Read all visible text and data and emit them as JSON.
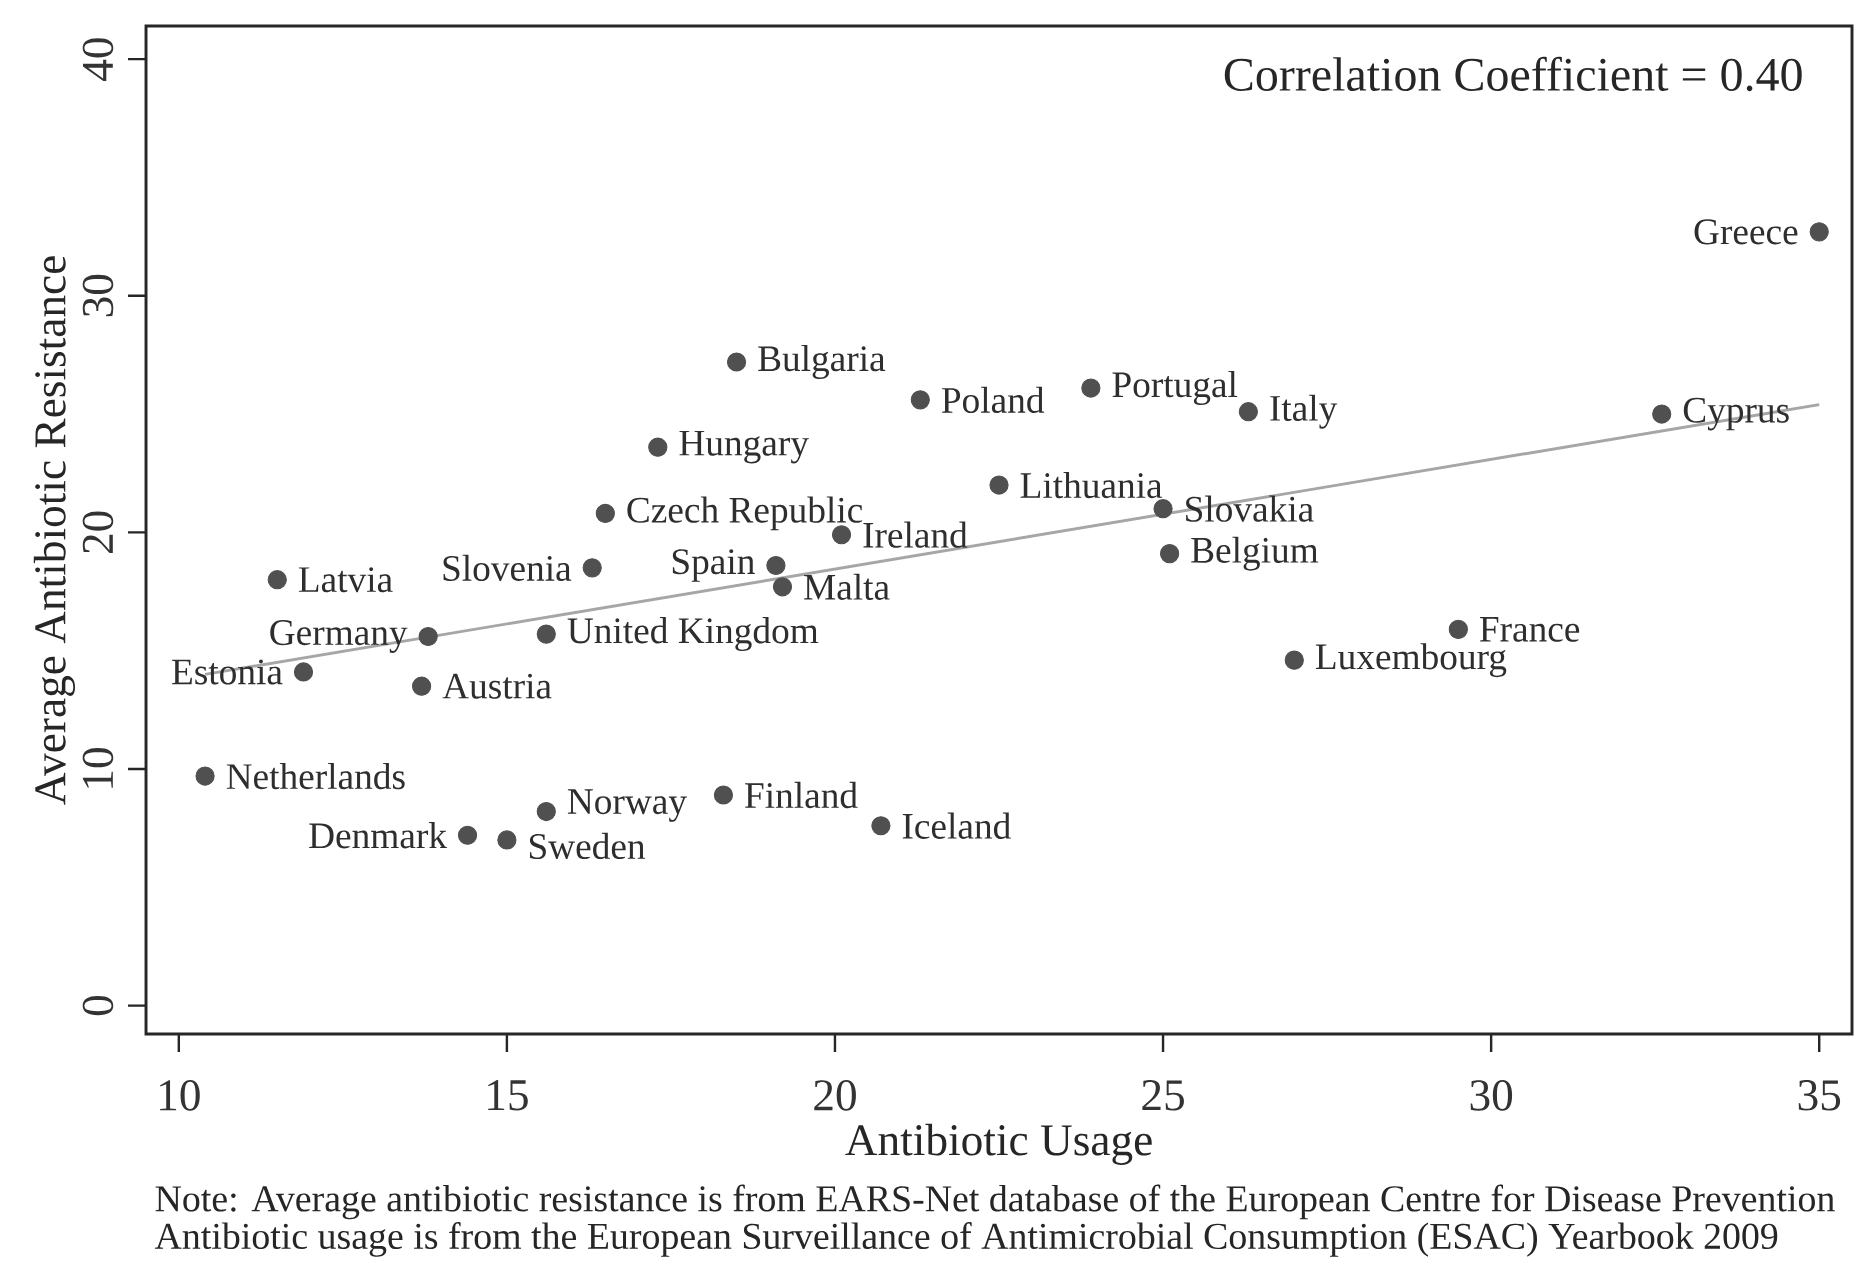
{
  "chart_data": {
    "type": "scatter",
    "xlabel": "Antibiotic Usage",
    "ylabel": "Average Antibiotic Resistance",
    "xlim": [
      9.5,
      35.5
    ],
    "ylim": [
      -1.2,
      41.4
    ],
    "xticks": [
      10,
      15,
      20,
      25,
      30,
      35
    ],
    "yticks": [
      0,
      10,
      20,
      30,
      40
    ],
    "marker": "circle",
    "series": [
      {
        "type": "line",
        "color": "#a6a6a6",
        "marker": "none",
        "x": [
          10.4,
          35.0
        ],
        "values": [
          14.0,
          25.4
        ]
      },
      {
        "type": "scatter",
        "color": "#505050",
        "x": [
          35.0,
          32.6,
          26.3,
          23.9,
          21.3,
          18.5,
          17.3,
          22.5,
          25.0,
          16.5,
          20.1,
          25.1,
          16.3,
          19.1,
          19.2,
          11.5,
          13.8,
          15.6,
          29.5,
          27.0,
          11.9,
          13.7,
          10.4,
          18.3,
          15.6,
          20.7,
          14.4,
          15.0
        ],
        "values": [
          32.7,
          25.0,
          25.1,
          26.1,
          25.6,
          27.2,
          23.6,
          22.0,
          21.0,
          20.8,
          19.9,
          19.1,
          18.5,
          18.6,
          17.7,
          18.0,
          15.6,
          15.7,
          15.9,
          14.6,
          14.1,
          13.5,
          9.7,
          8.9,
          8.2,
          7.6,
          7.2,
          7.0
        ]
      }
    ],
    "annotations": [
      "Correlation Coefficient = 0.40",
      {
        "text": "Greece",
        "x": 35.0,
        "y": 32.7
      },
      {
        "text": "Cyprus",
        "x": 32.6,
        "y": 25.0
      },
      {
        "text": "Italy",
        "x": 26.3,
        "y": 25.1
      },
      {
        "text": "Portugal",
        "x": 23.9,
        "y": 26.1
      },
      {
        "text": "Poland",
        "x": 21.3,
        "y": 25.6
      },
      {
        "text": "Bulgaria",
        "x": 18.5,
        "y": 27.2
      },
      {
        "text": "Hungary",
        "x": 17.3,
        "y": 23.6
      },
      {
        "text": "Lithuania",
        "x": 22.5,
        "y": 22.0
      },
      {
        "text": "Slovakia",
        "x": 25.0,
        "y": 21.0
      },
      {
        "text": "Czech Republic",
        "x": 16.5,
        "y": 20.8
      },
      {
        "text": "Ireland",
        "x": 20.1,
        "y": 19.9
      },
      {
        "text": "Belgium",
        "x": 25.1,
        "y": 19.1
      },
      {
        "text": "Slovenia",
        "x": 16.3,
        "y": 18.5
      },
      {
        "text": "Spain",
        "x": 19.1,
        "y": 18.6
      },
      {
        "text": "Malta",
        "x": 19.2,
        "y": 17.7
      },
      {
        "text": "Latvia",
        "x": 11.5,
        "y": 18.0
      },
      {
        "text": "Germany",
        "x": 13.8,
        "y": 15.6
      },
      {
        "text": "United Kingdom",
        "x": 15.6,
        "y": 15.7
      },
      {
        "text": "France",
        "x": 29.5,
        "y": 15.9
      },
      {
        "text": "Luxembourg",
        "x": 27.0,
        "y": 14.6
      },
      {
        "text": "Estonia",
        "x": 11.9,
        "y": 14.1
      },
      {
        "text": "Austria",
        "x": 13.7,
        "y": 13.5
      },
      {
        "text": "Netherlands",
        "x": 10.4,
        "y": 9.7
      },
      {
        "text": "Finland",
        "x": 18.3,
        "y": 8.9
      },
      {
        "text": "Norway",
        "x": 15.6,
        "y": 8.2
      },
      {
        "text": "Iceland",
        "x": 20.7,
        "y": 7.6
      },
      {
        "text": "Denmark",
        "x": 14.4,
        "y": 7.2
      },
      {
        "text": "Sweden",
        "x": 15.0,
        "y": 7.0
      },
      "Note: Average antibiotic resistance is from EARS-Net database of the European Centre for Disease Prevention",
      "Antibiotic usage is from the European Surveillance of Antimicrobial Consumption (ESAC) Yearbook 2009"
    ]
  }
}
